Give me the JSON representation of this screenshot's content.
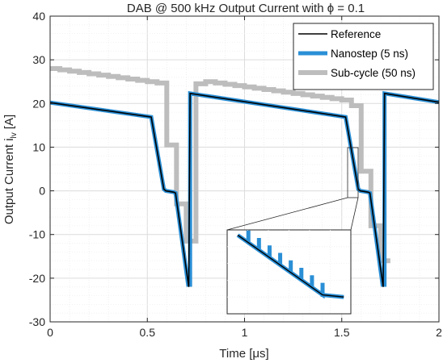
{
  "chart_data": {
    "type": "line",
    "title": "DAB @ 500 kHz Output Current with ϕ = 0.1",
    "xlabel": "Time [μs]",
    "ylabel": "Output Current i",
    "ylabel_subscript": "lv",
    "ylabel_unit": "[A]",
    "xlim": [
      0,
      2
    ],
    "ylim": [
      -30,
      40
    ],
    "x_ticks": [
      0,
      0.5,
      1,
      1.5,
      2
    ],
    "x_tick_labels": [
      "0",
      "0.5",
      "1",
      "1.5",
      "2"
    ],
    "y_ticks": [
      -30,
      -20,
      -10,
      0,
      10,
      20,
      30,
      40
    ],
    "y_tick_labels": [
      "-30",
      "-20",
      "-10",
      "0",
      "10",
      "20",
      "30",
      "40"
    ],
    "grid": "major and minor",
    "legend_position": "top-right",
    "series": [
      {
        "name": "Sub-cycle (50 ns)",
        "color": "#bdbdbd",
        "x": [
          0,
          0.05,
          0.05,
          0.1,
          0.1,
          0.15,
          0.15,
          0.2,
          0.2,
          0.25,
          0.25,
          0.3,
          0.3,
          0.35,
          0.35,
          0.4,
          0.4,
          0.45,
          0.45,
          0.5,
          0.5,
          0.55,
          0.55,
          0.6,
          0.6,
          0.65,
          0.65,
          0.7,
          0.7,
          0.75,
          0.75,
          0.8,
          0.8,
          0.85,
          0.85,
          0.9,
          0.9,
          0.95,
          0.95,
          1.0,
          1.0,
          1.05,
          1.05,
          1.1,
          1.1,
          1.15,
          1.15,
          1.2,
          1.2,
          1.25,
          1.25,
          1.3,
          1.3,
          1.35,
          1.35,
          1.4,
          1.4,
          1.45,
          1.45,
          1.5,
          1.5,
          1.55,
          1.55,
          1.6,
          1.6,
          1.65,
          1.65,
          1.7,
          1.7,
          1.75
        ],
        "y": [
          28,
          28,
          27.7,
          27.7,
          27.4,
          27.4,
          27.1,
          27.1,
          26.8,
          26.8,
          26.5,
          26.5,
          26.2,
          26.2,
          25.9,
          25.9,
          25.6,
          25.6,
          25.3,
          25.3,
          25,
          25,
          24.7,
          24.7,
          10.5,
          10.5,
          -3,
          -3,
          -11.5,
          -11.5,
          24.5,
          24.5,
          25,
          25,
          24.7,
          24.7,
          24.4,
          24.4,
          24.1,
          24.1,
          23.8,
          23.8,
          23.5,
          23.5,
          23.2,
          23.2,
          22.9,
          22.9,
          22.6,
          22.6,
          22.3,
          22.3,
          22,
          22,
          21.7,
          21.7,
          21.4,
          21.4,
          21.1,
          21.1,
          20.8,
          20.8,
          19.5,
          19.5,
          4.5,
          4.5,
          -8,
          -8,
          -16,
          -16
        ]
      },
      {
        "name": "Nanostep (5 ns)",
        "color": "#2a8fd6",
        "x": [
          0,
          0.52,
          0.585,
          0.595,
          0.635,
          0.645,
          0.71,
          0.72,
          0.72,
          1.52,
          1.585,
          1.595,
          1.635,
          1.645,
          1.71,
          1.72,
          1.72,
          2.0
        ],
        "y": [
          20.2,
          16.9,
          0.4,
          0,
          -0.3,
          -0.5,
          -21.5,
          -21.5,
          22.3,
          16.9,
          0.4,
          0,
          -0.3,
          -0.5,
          -21.5,
          -21.5,
          22.3,
          20.3
        ]
      },
      {
        "name": "Reference",
        "color": "#000000",
        "x": [
          0,
          0.52,
          0.585,
          0.595,
          0.635,
          0.645,
          0.713,
          0.72,
          1.52,
          1.585,
          1.595,
          1.635,
          1.645,
          1.713,
          1.72,
          2.0
        ],
        "y": [
          20.2,
          16.9,
          0.4,
          0,
          -0.3,
          -0.5,
          -22,
          22.3,
          16.9,
          0.4,
          0,
          -0.3,
          -0.5,
          -22,
          22.3,
          20.3
        ]
      }
    ],
    "inset": {
      "description_note": "zoom of the falling edge around t = 1.53 us",
      "xlim": [
        1.525,
        1.56
      ],
      "ylim": [
        6,
        14
      ],
      "zoom_source": {
        "xlim": [
          1.525,
          1.56
        ],
        "ylim": [
          -1,
          13
        ]
      },
      "reference": {
        "x": [
          1.528,
          1.552,
          1.558
        ],
        "y": [
          13.5,
          7.8,
          7.6
        ]
      },
      "nanostep_steps": 8
    }
  }
}
